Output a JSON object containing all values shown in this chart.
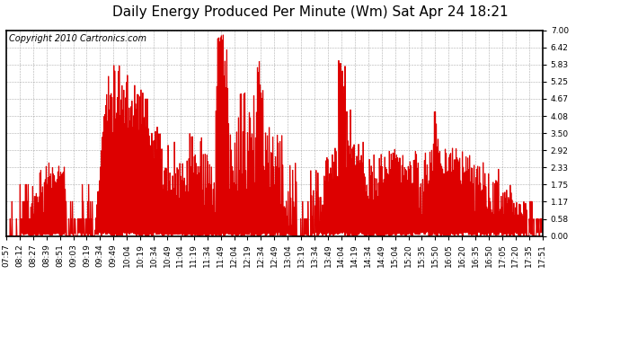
{
  "title": "Daily Energy Produced Per Minute (Wm) Sat Apr 24 18:21",
  "copyright": "Copyright 2010 Cartronics.com",
  "line_color": "#DD0000",
  "bg_color": "#FFFFFF",
  "plot_bg_color": "#FFFFFF",
  "grid_color": "#999999",
  "border_color": "#000000",
  "ylim": [
    0.0,
    7.0
  ],
  "yticks": [
    0.0,
    0.58,
    1.17,
    1.75,
    2.33,
    2.92,
    3.5,
    4.08,
    4.67,
    5.25,
    5.83,
    6.42,
    7.0
  ],
  "xtick_labels": [
    "07:57",
    "08:12",
    "08:27",
    "08:39",
    "08:51",
    "09:03",
    "09:19",
    "09:34",
    "09:49",
    "10:04",
    "10:19",
    "10:34",
    "10:49",
    "11:04",
    "11:19",
    "11:34",
    "11:49",
    "12:04",
    "12:19",
    "12:34",
    "12:49",
    "13:04",
    "13:19",
    "13:34",
    "13:49",
    "14:04",
    "14:19",
    "14:34",
    "14:49",
    "15:04",
    "15:20",
    "15:35",
    "15:50",
    "16:05",
    "16:20",
    "16:35",
    "16:50",
    "17:05",
    "17:20",
    "17:35",
    "17:51"
  ],
  "title_fontsize": 11,
  "copyright_fontsize": 7,
  "tick_fontsize": 6.5,
  "line_width": 0.7
}
